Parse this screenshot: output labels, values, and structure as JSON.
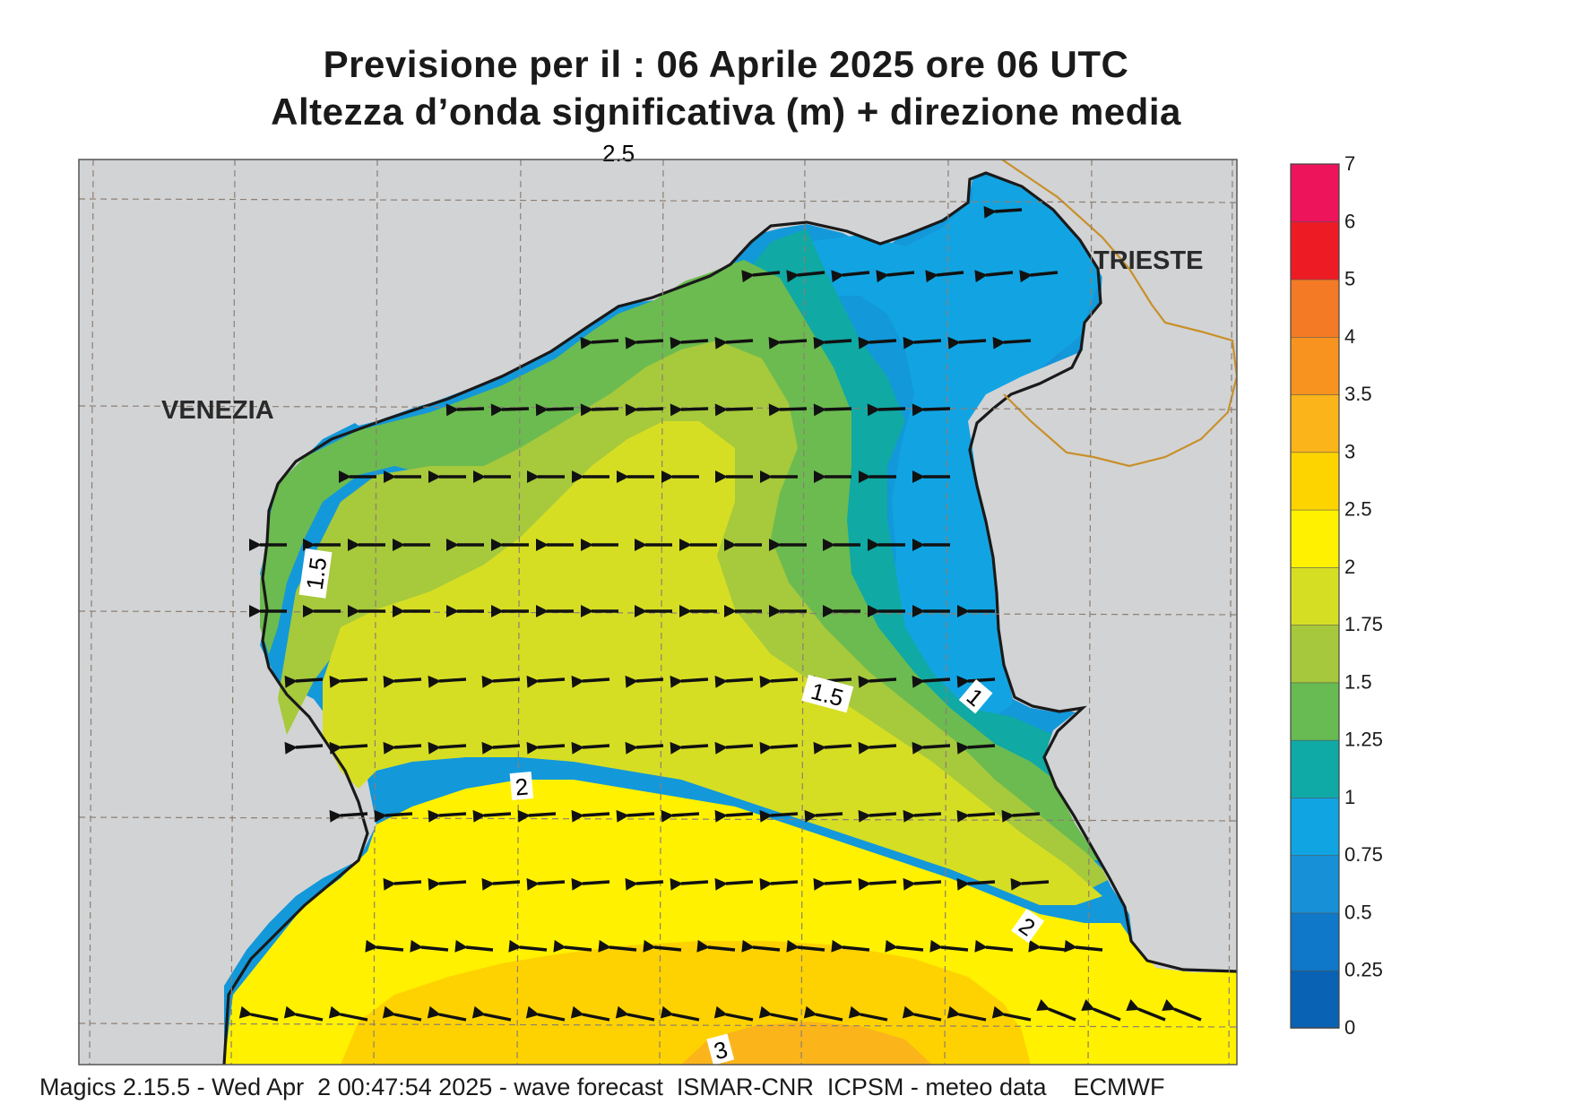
{
  "title": {
    "line1": "Previsione per il  :  06   Aprile  2025   ore 06 UTC",
    "line2": "Altezza d’onda significativa (m) + direzione media"
  },
  "footer": "Magics 2.15.5 - Wed Apr  2 00:47:54 2025 - wave forecast  ISMAR-CNR  ICPSM - meteo data    ECMWF",
  "places": [
    {
      "name": "VENEZIA"
    },
    {
      "name": "TRIESTE"
    }
  ],
  "contour_labels": [
    "1.5",
    "1.5",
    "1",
    "2",
    "2",
    "3"
  ],
  "top_partial_label": "2.5",
  "colorbar": {
    "ticks": [
      "0",
      "0.25",
      "0.5",
      "0.75",
      "1",
      "1.25",
      "1.5",
      "1.75",
      "2",
      "2.5",
      "3",
      "3.5",
      "4",
      "5",
      "6",
      "7"
    ],
    "colors": [
      "#0a62b4",
      "#0f78c8",
      "#1890d8",
      "#10a4e2",
      "#10aaa6",
      "#68ba52",
      "#a6c83c",
      "#d6de24",
      "#fff100",
      "#fed400",
      "#fbb41a",
      "#f7931e",
      "#f47a25",
      "#ed1c24",
      "#ed145b"
    ]
  },
  "field_colors": {
    "land": "#d2d3d5",
    "sea_025_05": "#1a8ed6",
    "sea_05_075": "#1398da",
    "sea_075_1": "#12a4e2",
    "sea_1_125": "#10a9a4",
    "sea_125_15": "#6cbb50",
    "sea_15_175": "#a7c93c",
    "sea_175_2": "#d6de24",
    "sea_2_25": "#fff100",
    "sea_25_3": "#fed200",
    "sea_3_35": "#fbb41a",
    "border": "#c8902a"
  }
}
